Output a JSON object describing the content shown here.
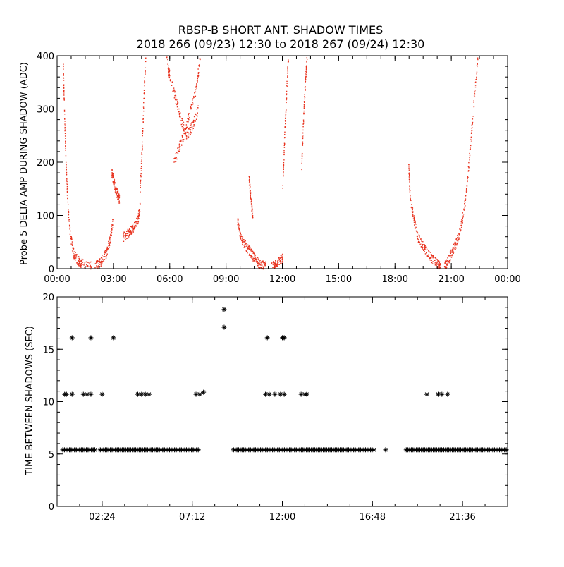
{
  "title": {
    "line1": "RBSP-B SHORT ANT. SHADOW TIMES",
    "line2": "2018 266 (09/23) 12:30 to 2018 267 (09/24) 12:30"
  },
  "colors": {
    "top_series": "#e8321e",
    "bottom_series": "#000000",
    "axes": "#000000"
  },
  "chart_data": [
    {
      "type": "scatter",
      "xlabel": "",
      "ylabel": "Probe 5 DELTA AMP DURING SHADOW (ADC)",
      "xlim": [
        0,
        24
      ],
      "ylim": [
        0,
        400
      ],
      "x_ticks": [
        0,
        3,
        6,
        9,
        12,
        15,
        18,
        21,
        24
      ],
      "x_tick_labels": [
        "00:00",
        "03:00",
        "06:00",
        "09:00",
        "12:00",
        "15:00",
        "18:00",
        "21:00",
        "00:00"
      ],
      "y_ticks": [
        0,
        100,
        200,
        300,
        400
      ],
      "y_tick_labels": [
        "0",
        "100",
        "200",
        "300",
        "400"
      ],
      "marker": "dot",
      "color": "#e8321e",
      "segments": [
        {
          "x": [
            0.3,
            0.35,
            0.45,
            0.55,
            0.7,
            0.85,
            1.0,
            1.2,
            1.5,
            1.8
          ],
          "y": [
            390,
            320,
            200,
            120,
            60,
            30,
            20,
            12,
            8,
            5
          ]
        },
        {
          "x": [
            2.0,
            2.2,
            2.4,
            2.6,
            2.8,
            2.95
          ],
          "y": [
            5,
            10,
            18,
            30,
            55,
            90
          ]
        },
        {
          "x": [
            2.9,
            3.0,
            3.1,
            3.2,
            3.3
          ],
          "y": [
            180,
            165,
            150,
            140,
            130
          ]
        },
        {
          "x": [
            3.5,
            3.7,
            3.9,
            4.1,
            4.3,
            4.4
          ],
          "y": [
            60,
            65,
            72,
            80,
            95,
            120
          ]
        },
        {
          "x": [
            4.4,
            4.5,
            4.6,
            4.7
          ],
          "y": [
            150,
            220,
            320,
            400
          ]
        },
        {
          "x": [
            5.8,
            6.0,
            6.3,
            6.6,
            6.9,
            7.2,
            7.5
          ],
          "y": [
            400,
            360,
            320,
            280,
            250,
            270,
            300
          ]
        },
        {
          "x": [
            6.2,
            6.5,
            6.8,
            7.1,
            7.4,
            7.6
          ],
          "y": [
            200,
            230,
            260,
            300,
            340,
            400
          ]
        },
        {
          "x": [
            9.6,
            9.7,
            9.9,
            10.1,
            10.3,
            10.5,
            10.7,
            10.9,
            11.1
          ],
          "y": [
            90,
            70,
            50,
            40,
            30,
            20,
            12,
            8,
            5
          ]
        },
        {
          "x": [
            10.2,
            10.3,
            10.4
          ],
          "y": [
            170,
            130,
            100
          ]
        },
        {
          "x": [
            11.4,
            11.6,
            11.8,
            12.0
          ],
          "y": [
            5,
            10,
            15,
            20
          ]
        },
        {
          "x": [
            12.0,
            12.1,
            12.2,
            12.3
          ],
          "y": [
            150,
            250,
            330,
            400
          ]
        },
        {
          "x": [
            13.0,
            13.1,
            13.2,
            13.3
          ],
          "y": [
            180,
            280,
            350,
            400
          ]
        },
        {
          "x": [
            18.7,
            18.8,
            19.0,
            19.2,
            19.5,
            19.8,
            20.1,
            20.3,
            20.4
          ],
          "y": [
            200,
            130,
            90,
            60,
            40,
            25,
            15,
            8,
            2
          ]
        },
        {
          "x": [
            20.6,
            20.8,
            21.0,
            21.2,
            21.4,
            21.6,
            21.8,
            22.0,
            22.2,
            22.4
          ],
          "y": [
            5,
            15,
            30,
            45,
            65,
            100,
            150,
            230,
            320,
            400
          ]
        }
      ]
    },
    {
      "type": "scatter",
      "xlabel": "",
      "ylabel": "TIME BETWEEN SHADOWS (SEC)",
      "xlim": [
        0,
        24
      ],
      "ylim": [
        0,
        20
      ],
      "x_ticks": [
        2.4,
        7.2,
        12.0,
        16.8,
        21.6
      ],
      "x_tick_labels": [
        "02:24",
        "07:12",
        "12:00",
        "16:48",
        "21:36"
      ],
      "y_ticks": [
        0,
        5,
        10,
        15,
        20
      ],
      "y_tick_labels": [
        "0",
        "5",
        "10",
        "15",
        "20"
      ],
      "marker": "asterisk",
      "color": "#000000",
      "baseline": {
        "y": 5.4,
        "ranges": [
          [
            0.3,
            2.1
          ],
          [
            2.3,
            7.6
          ],
          [
            9.4,
            11.2
          ],
          [
            11.3,
            16.9
          ],
          [
            18.6,
            20.5
          ],
          [
            20.6,
            24.0
          ]
        ]
      },
      "points": [
        {
          "x": 0.4,
          "y": 10.7
        },
        {
          "x": 0.5,
          "y": 10.7
        },
        {
          "x": 0.8,
          "y": 10.7
        },
        {
          "x": 1.4,
          "y": 10.7
        },
        {
          "x": 1.6,
          "y": 10.7
        },
        {
          "x": 1.8,
          "y": 10.7
        },
        {
          "x": 2.4,
          "y": 10.7
        },
        {
          "x": 4.3,
          "y": 10.7
        },
        {
          "x": 4.5,
          "y": 10.7
        },
        {
          "x": 4.7,
          "y": 10.7
        },
        {
          "x": 4.9,
          "y": 10.7
        },
        {
          "x": 7.4,
          "y": 10.7
        },
        {
          "x": 7.6,
          "y": 10.7
        },
        {
          "x": 7.8,
          "y": 10.9
        },
        {
          "x": 11.1,
          "y": 10.7
        },
        {
          "x": 11.3,
          "y": 10.7
        },
        {
          "x": 11.6,
          "y": 10.7
        },
        {
          "x": 11.9,
          "y": 10.7
        },
        {
          "x": 12.1,
          "y": 10.7
        },
        {
          "x": 13.0,
          "y": 10.7
        },
        {
          "x": 13.2,
          "y": 10.7
        },
        {
          "x": 13.3,
          "y": 10.7
        },
        {
          "x": 19.7,
          "y": 10.7
        },
        {
          "x": 20.3,
          "y": 10.7
        },
        {
          "x": 20.5,
          "y": 10.7
        },
        {
          "x": 20.8,
          "y": 10.7
        },
        {
          "x": 0.8,
          "y": 16.1
        },
        {
          "x": 1.8,
          "y": 16.1
        },
        {
          "x": 3.0,
          "y": 16.1
        },
        {
          "x": 11.2,
          "y": 16.1
        },
        {
          "x": 12.0,
          "y": 16.1
        },
        {
          "x": 12.1,
          "y": 16.1
        },
        {
          "x": 8.9,
          "y": 18.8
        },
        {
          "x": 8.9,
          "y": 17.1
        },
        {
          "x": 17.5,
          "y": 5.4
        }
      ]
    }
  ]
}
